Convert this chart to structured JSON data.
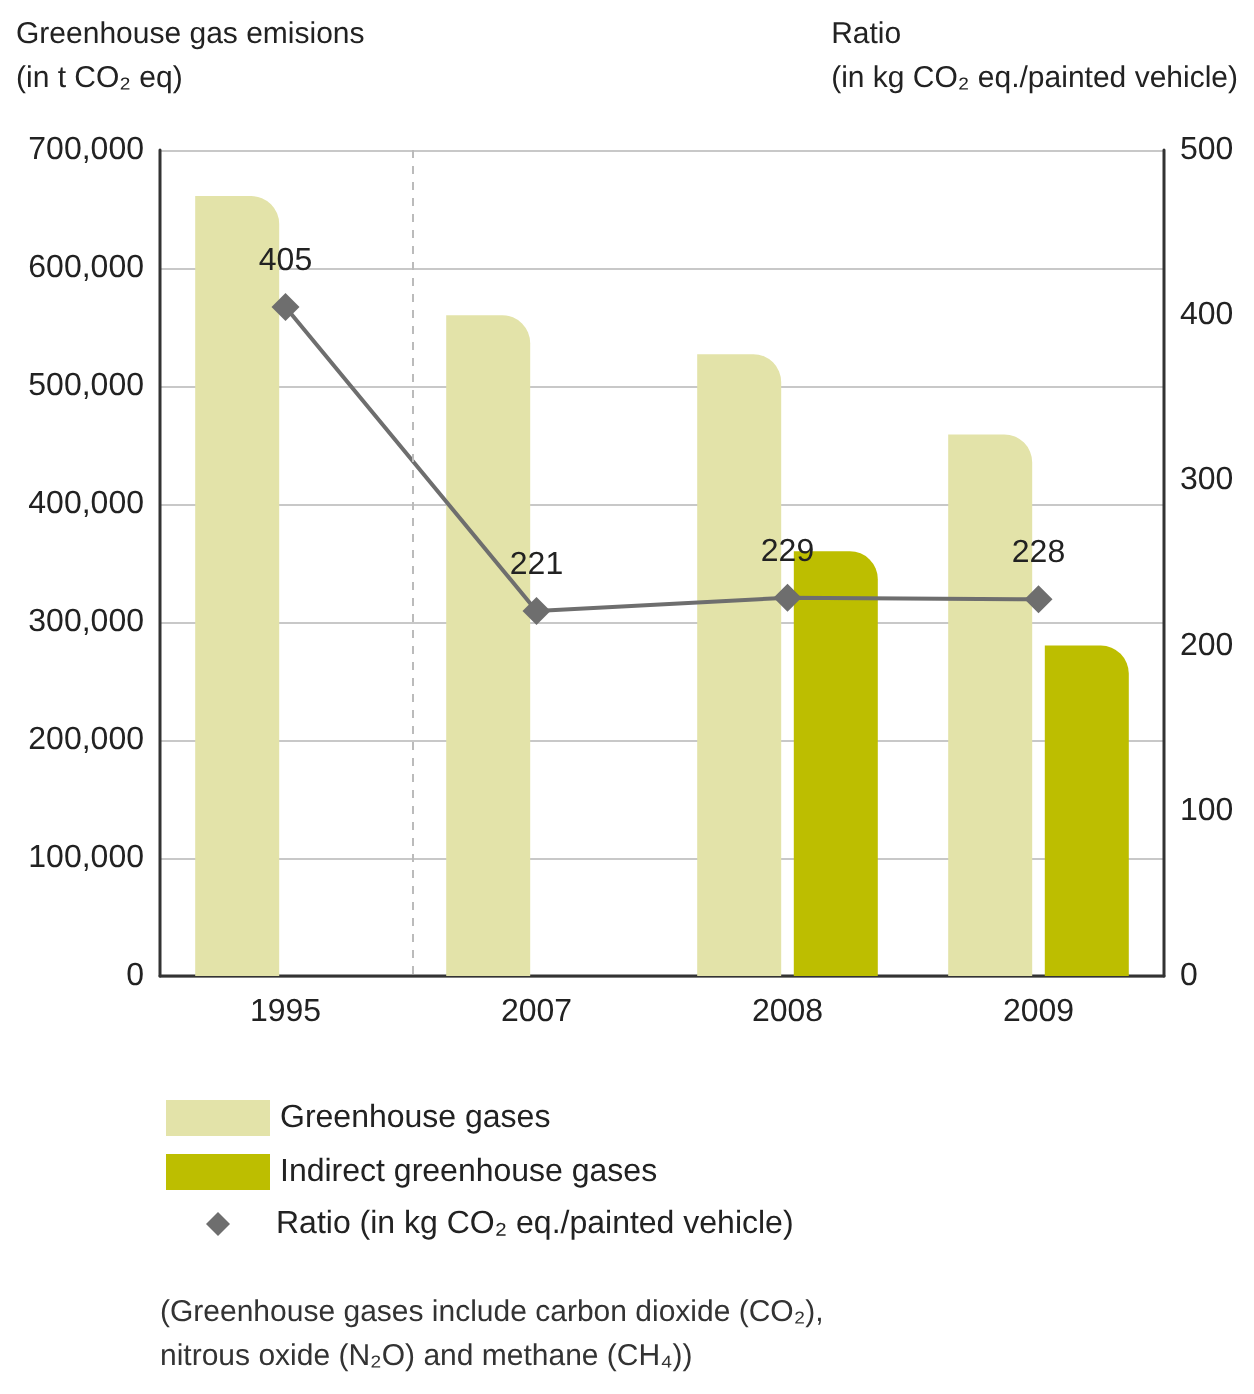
{
  "chart_data": {
    "type": "bar",
    "ylabel": "Greenhouse gas emisions\n(in t CO₂ eq)",
    "y2label": "Ratio\n(in kg CO₂ eq./painted vehicle)",
    "categories": [
      "1995",
      "2007",
      "2008",
      "2009"
    ],
    "series": [
      {
        "name": "Greenhouse gases",
        "color": "#e3e3a9",
        "values": [
          661000,
          560000,
          527000,
          459000
        ]
      },
      {
        "name": "Indirect greenhouse gases",
        "color": "#bdbe00",
        "values": [
          null,
          null,
          360000,
          280000
        ]
      },
      {
        "name": "Ratio (in kg CO₂ eq./painted vehicle)",
        "type": "line",
        "axis": "y2",
        "color": "#6e6e6e",
        "marker": "diamond",
        "values": [
          405,
          221,
          229,
          228
        ],
        "value_labels": [
          "405",
          "221",
          "229",
          "228"
        ]
      }
    ],
    "ylim": [
      0,
      700000
    ],
    "yticks": [
      0,
      {
        "value": 100000,
        "label": "100,000"
      },
      {
        "value": 200000,
        "label": "200,000"
      },
      {
        "value": 300000,
        "label": "300,000"
      },
      {
        "value": 400000,
        "label": "400,000"
      },
      {
        "value": 500000,
        "label": "500,000"
      },
      {
        "value": 600000,
        "label": "600,000"
      },
      {
        "value": 700000,
        "label": "700,000"
      }
    ],
    "y2lim": [
      0,
      500
    ],
    "y2ticks": [
      0,
      100,
      200,
      300,
      400,
      500
    ],
    "grid": "y",
    "legend": "bottom left",
    "annotations": [
      "(Greenhouse gases include carbon dioxide (CO₂),\nnitrous oxide (N₂O) and methane (CH₄))"
    ]
  }
}
